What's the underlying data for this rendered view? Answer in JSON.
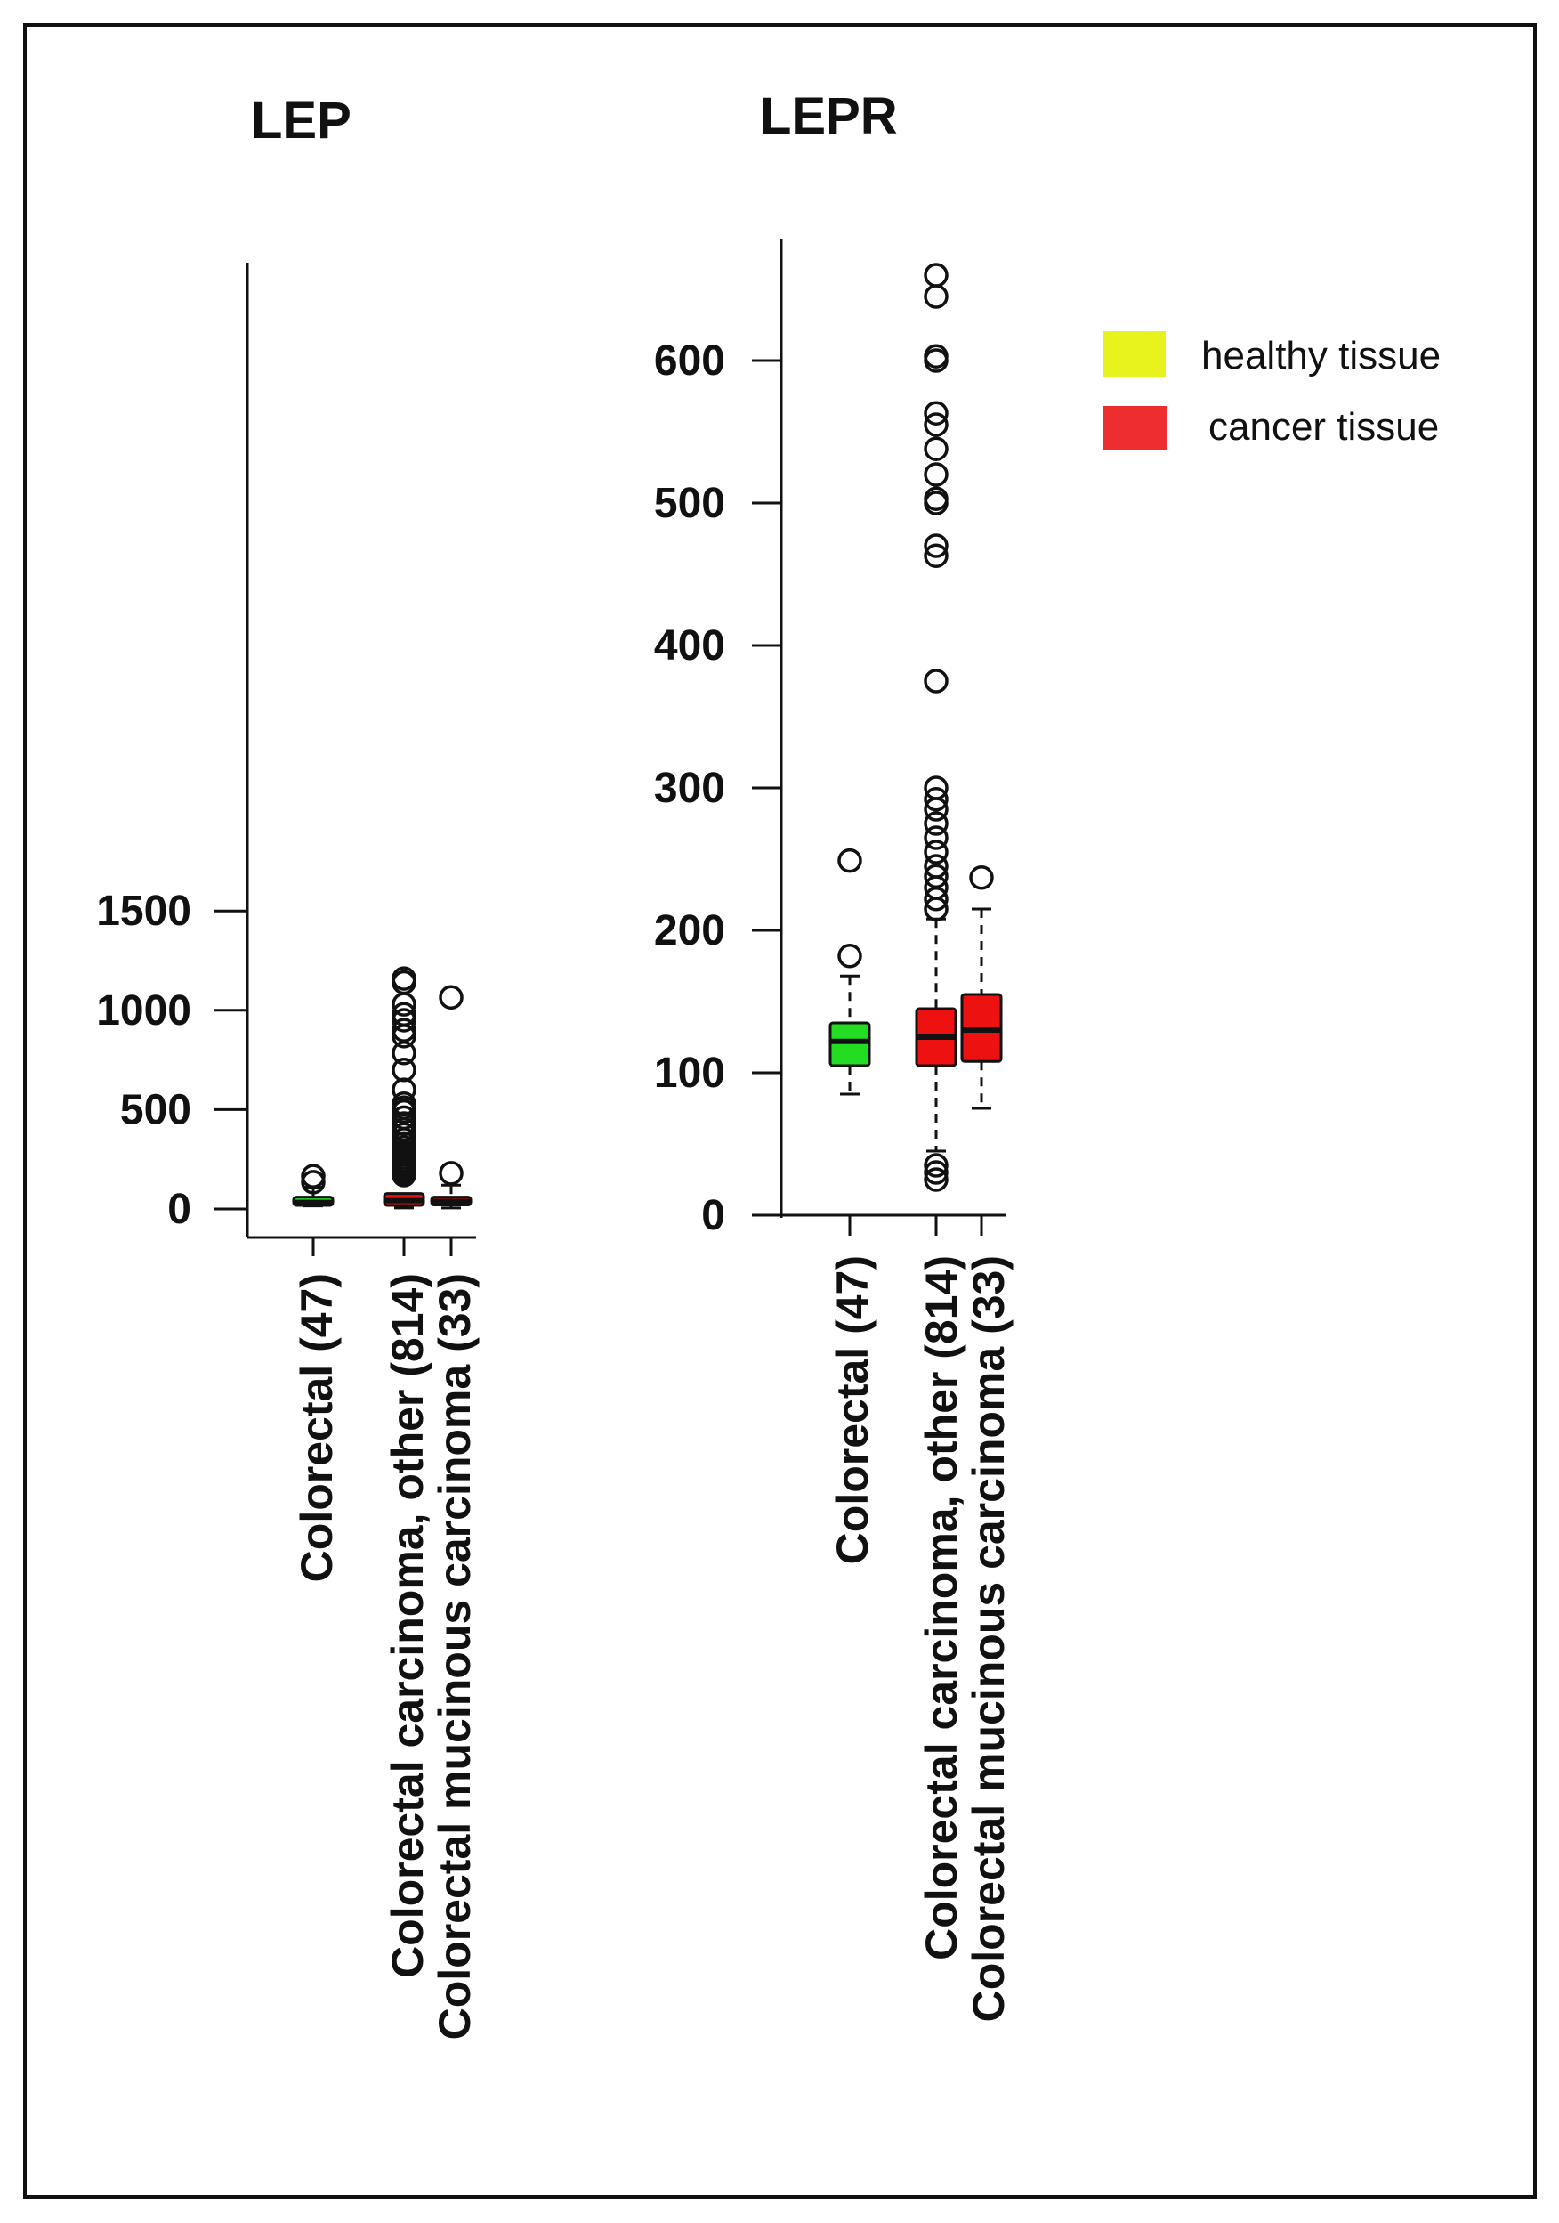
{
  "colors": {
    "healthy_box": "#22dd22",
    "cancer_box": "#ee1111",
    "legend_healthy": "#e8f21c",
    "legend_cancer": "#ee2e2e",
    "frame": "#111111"
  },
  "legend": {
    "healthy_label": "healthy tissue",
    "cancer_label": "cancer tissue"
  },
  "chart_data": [
    {
      "type": "box",
      "title": "LEP",
      "xlabel": "",
      "ylabel": "",
      "ylim": [
        -60,
        1580
      ],
      "yticks": [
        0,
        500,
        1000,
        1500
      ],
      "categories": [
        "Colorectal (47)",
        "Colorectal carcinoma, other (814)",
        "Colorectal mucinous carcinoma (33)"
      ],
      "boxes": [
        {
          "category": "Colorectal (47)",
          "group": "healthy",
          "min": 15,
          "q1": 18,
          "median": 33,
          "q3": 60,
          "max": 110,
          "outliers": [
            135,
            165
          ]
        },
        {
          "category": "Colorectal carcinoma, other (814)",
          "group": "cancer",
          "min": 5,
          "q1": 18,
          "median": 42,
          "q3": 78,
          "max": 160,
          "outliers": [
            170,
            180,
            190,
            200,
            210,
            220,
            230,
            245,
            260,
            275,
            290,
            310,
            330,
            350,
            375,
            400,
            430,
            460,
            490,
            510,
            530,
            600,
            700,
            785,
            870,
            900,
            950,
            980,
            1030,
            1140,
            1160
          ]
        },
        {
          "category": "Colorectal mucinous carcinoma (33)",
          "group": "cancer",
          "min": 5,
          "q1": 20,
          "median": 38,
          "q3": 60,
          "max": 120,
          "outliers": [
            180,
            1065
          ]
        }
      ]
    },
    {
      "type": "box",
      "title": "LEPR",
      "xlabel": "",
      "ylabel": "",
      "ylim": [
        0,
        660
      ],
      "yticks": [
        0,
        100,
        200,
        300,
        400,
        500,
        600
      ],
      "categories": [
        "Colorectal (47)",
        "Colorectal carcinoma, other (814)",
        "Colorectal mucinous carcinoma (33)"
      ],
      "boxes": [
        {
          "category": "Colorectal (47)",
          "group": "healthy",
          "min": 85,
          "q1": 105,
          "median": 122,
          "q3": 135,
          "max": 168,
          "outliers": [
            182,
            249
          ]
        },
        {
          "category": "Colorectal carcinoma, other (814)",
          "group": "cancer",
          "min": 45,
          "q1": 105,
          "median": 125,
          "q3": 145,
          "max": 208,
          "outliers": [
            25,
            30,
            35,
            215,
            222,
            230,
            238,
            245,
            255,
            265,
            275,
            285,
            292,
            300,
            375,
            463,
            470,
            500,
            503,
            520,
            538,
            555,
            563,
            600,
            603,
            645,
            660
          ]
        },
        {
          "category": "Colorectal mucinous carcinoma (33)",
          "group": "cancer",
          "min": 75,
          "q1": 108,
          "median": 130,
          "q3": 155,
          "max": 215,
          "outliers": [
            237
          ]
        }
      ]
    }
  ]
}
